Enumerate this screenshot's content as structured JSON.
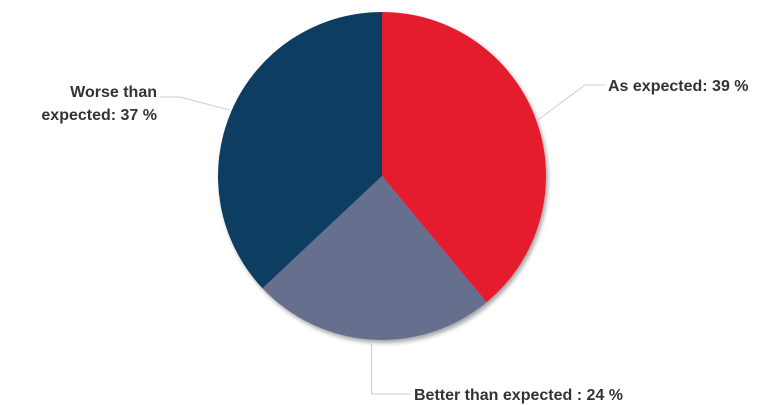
{
  "chart_data": {
    "type": "pie",
    "title": "",
    "slices": [
      {
        "name": "As expected",
        "value": 39,
        "label_line1": "As expected: 39 %",
        "label_line2": "",
        "color": "#e41f2f"
      },
      {
        "name": "Better than expected",
        "value": 24,
        "label_line1": "Better than expected : 24 %",
        "label_line2": "",
        "color": "#66708e"
      },
      {
        "name": "Worse than expected",
        "value": 37,
        "label_line1": "Worse than",
        "label_line2": "expected: 37 %",
        "color": "#0b3c61"
      }
    ],
    "start_angle": "12 o'clock",
    "direction": "clockwise",
    "legend": "none"
  }
}
